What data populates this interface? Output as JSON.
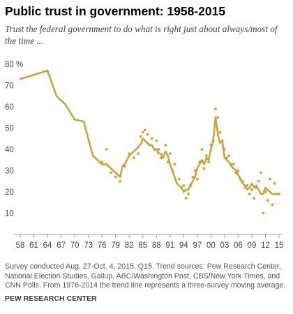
{
  "title": "Public trust in government: 1958-2015",
  "subtitle": "Trust the federal government to do what is right just about always/most of the time ...",
  "note": "Survey conducted Aug. 27-Oct. 4, 2015. Q15. Trend sources: Pew Research Center, National Election Studies, Gallup, ABC/Washington Post, CBS/New York Times, and CNN Polls. From 1976-2014 the trend line represents a three-survey moving average.",
  "source": "PEW RESEARCH CENTER",
  "chart_data": {
    "type": "line",
    "title": "Public trust in government: 1958-2015",
    "xlabel": "",
    "ylabel": "",
    "xlim": [
      1958,
      2015
    ],
    "ylim": [
      0,
      80
    ],
    "y_ticks": [
      0,
      10,
      20,
      30,
      40,
      50,
      60,
      70,
      80
    ],
    "y_tick_labels": [
      "",
      "10",
      "20",
      "30",
      "40",
      "50",
      "60",
      "70",
      "80 %"
    ],
    "x_ticks": [
      1958,
      1961,
      1964,
      1967,
      1970,
      1973,
      1976,
      1979,
      1982,
      1985,
      1988,
      1991,
      1994,
      1997,
      2000,
      2003,
      2006,
      2009,
      2012,
      2015
    ],
    "x_tick_labels": [
      "58",
      "61",
      "64",
      "67",
      "70",
      "73",
      "76",
      "79",
      "82",
      "85",
      "88",
      "91",
      "94",
      "97",
      "00",
      "03",
      "06",
      "09",
      "12",
      "15"
    ],
    "grid": false,
    "colors": {
      "trend": "#c9a43a",
      "axis": "#999999"
    },
    "series": [
      {
        "role": "trend-line",
        "x": [
          1958,
          1964,
          1966,
          1968,
          1970,
          1972,
          1974,
          1976,
          1977,
          1978,
          1979,
          1980,
          1980.5,
          1981,
          1982,
          1983,
          1984,
          1984.7,
          1985,
          1985.5,
          1986,
          1986.5,
          1987,
          1987.5,
          1988,
          1988.5,
          1989,
          1989.5,
          1990,
          1990.5,
          1991,
          1991.5,
          1992,
          1992.5,
          1993,
          1993.5,
          1994,
          1994.5,
          1995,
          1995.5,
          1996,
          1996.5,
          1997,
          1997.5,
          1998,
          1998.5,
          1999,
          1999.5,
          2000,
          2000.5,
          2001,
          2001.3,
          2001.6,
          2002,
          2002.5,
          2003,
          2003.5,
          2004,
          2004.5,
          2005,
          2005.5,
          2006,
          2006.5,
          2007,
          2007.5,
          2008,
          2008.5,
          2009,
          2009.5,
          2010,
          2010.5,
          2011,
          2011.5,
          2012,
          2012.5,
          2013,
          2013.5,
          2014,
          2015
        ],
        "y": [
          73,
          77,
          65,
          61,
          54,
          53,
          37,
          33,
          33,
          31,
          29,
          27,
          32,
          33,
          37,
          39,
          41,
          43,
          45,
          44,
          43,
          42,
          42,
          40,
          40,
          38,
          38,
          36,
          39,
          37,
          33,
          30,
          27,
          24,
          23,
          22,
          20,
          21,
          21,
          23,
          25,
          27,
          31,
          33,
          35,
          33,
          36,
          35,
          40,
          44,
          55,
          51,
          46,
          43,
          44,
          36,
          35,
          34,
          32,
          31,
          30,
          28,
          26,
          24,
          23,
          21,
          22,
          24,
          22,
          23,
          21,
          19,
          19,
          22,
          21,
          20,
          19,
          19,
          19
        ]
      },
      {
        "role": "individual-surveys",
        "x": [
          1976,
          1977,
          1978,
          1979,
          1980,
          1981,
          1982,
          1983,
          1984,
          1984.5,
          1985,
          1985.5,
          1986,
          1986.5,
          1987,
          1987.5,
          1988,
          1988.5,
          1989,
          1990,
          1990.5,
          1991,
          1991.5,
          1992,
          1993,
          1993.5,
          1994,
          1994.5,
          1995,
          1995.5,
          1996,
          1996.5,
          1997,
          1997.5,
          1998,
          1998.5,
          1999,
          1999.5,
          2000,
          2000.5,
          2001,
          2001.5,
          2002,
          2002.5,
          2003,
          2003.5,
          2004,
          2004.5,
          2005,
          2005.5,
          2006,
          2006.5,
          2007,
          2007.5,
          2008,
          2008.5,
          2009,
          2009.5,
          2010,
          2010.5,
          2011,
          2011.5,
          2012,
          2012.5,
          2013,
          2013.5,
          2014,
          2014.5,
          2015
        ],
        "y": [
          34,
          40,
          29,
          27,
          25,
          32,
          38,
          36,
          38,
          46,
          48,
          49,
          47,
          42,
          45,
          40,
          44,
          40,
          36,
          42,
          34,
          38,
          30,
          33,
          26,
          22,
          23,
          17,
          19,
          23,
          27,
          30,
          26,
          34,
          40,
          31,
          37,
          34,
          42,
          44,
          59,
          55,
          48,
          44,
          40,
          36,
          37,
          33,
          33,
          29,
          30,
          26,
          25,
          22,
          23,
          19,
          21,
          17,
          22,
          25,
          29,
          10,
          20,
          16,
          26,
          14,
          24,
          19,
          19
        ]
      }
    ]
  }
}
